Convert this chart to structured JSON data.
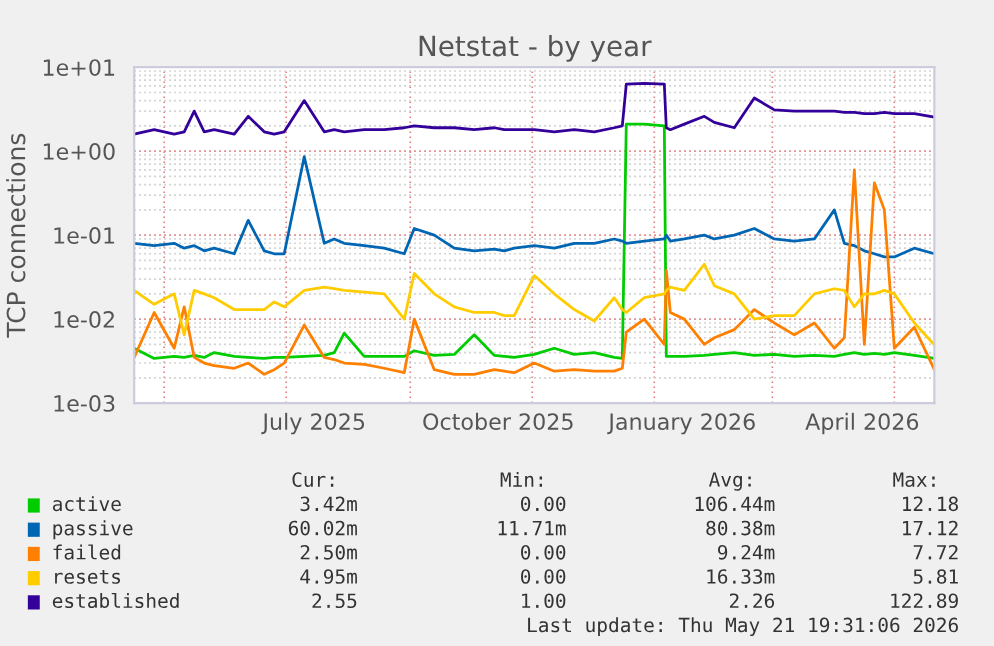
{
  "chart_data": {
    "type": "line",
    "title": "Netstat - by year",
    "ylabel": "TCP connections",
    "log": true,
    "grid": true,
    "legend": "bottom",
    "xlim": [
      "2025-04-16",
      "2026-05-21"
    ],
    "xticks": [
      {
        "value": "2025-05-01",
        "label": null
      },
      {
        "value": "2025-07-01",
        "label": null
      },
      {
        "value": "2025-07-15",
        "label": "July 2025"
      },
      {
        "value": "2025-09-01",
        "label": null
      },
      {
        "value": "2025-10-15",
        "label": "October 2025"
      },
      {
        "value": "2025-11-01",
        "label": null
      },
      {
        "value": "2026-01-01",
        "label": null
      },
      {
        "value": "2026-01-15",
        "label": "January 2026"
      },
      {
        "value": "2026-03-01",
        "label": null
      },
      {
        "value": "2026-04-15",
        "label": "April 2026"
      },
      {
        "value": "2026-05-01",
        "label": null
      }
    ],
    "ylim": [
      0.001,
      10
    ],
    "yticks": [
      {
        "value": 0.001,
        "label": "1e-03"
      },
      {
        "value": 0.01,
        "label": "1e-02"
      },
      {
        "value": 0.1,
        "label": "1e-01"
      },
      {
        "value": 1,
        "label": "1e+00"
      },
      {
        "value": 10,
        "label": "1e+01"
      }
    ],
    "x": [
      "2025-04-16",
      "2025-04-26",
      "2025-05-06",
      "2025-05-11",
      "2025-05-16",
      "2025-05-21",
      "2025-05-26",
      "2025-06-05",
      "2025-06-12",
      "2025-06-20",
      "2025-06-25",
      "2025-06-30",
      "2025-07-10",
      "2025-07-20",
      "2025-07-25",
      "2025-07-30",
      "2025-08-09",
      "2025-08-19",
      "2025-08-29",
      "2025-09-03",
      "2025-09-13",
      "2025-09-23",
      "2025-10-03",
      "2025-10-13",
      "2025-10-18",
      "2025-10-23",
      "2025-11-02",
      "2025-11-12",
      "2025-11-22",
      "2025-12-02",
      "2025-12-12",
      "2025-12-16",
      "2025-12-18",
      "2025-12-27",
      "2026-01-06",
      "2026-01-07",
      "2026-01-09",
      "2026-01-16",
      "2026-01-26",
      "2026-01-31",
      "2026-02-10",
      "2026-02-20",
      "2026-03-02",
      "2026-03-12",
      "2026-03-22",
      "2026-04-01",
      "2026-04-06",
      "2026-04-11",
      "2026-04-16",
      "2026-04-21",
      "2026-04-26",
      "2026-05-01",
      "2026-05-11",
      "2026-05-21"
    ],
    "series": [
      {
        "name": "active",
        "color": "#00cc00",
        "values": [
          0.0045,
          0.0034,
          0.0036,
          0.0035,
          0.0037,
          0.0035,
          0.004,
          0.0036,
          0.0035,
          0.0034,
          0.0035,
          0.0035,
          0.0036,
          0.0037,
          0.004,
          0.0068,
          0.0036,
          0.0036,
          0.0036,
          0.0042,
          0.0037,
          0.0038,
          0.0065,
          0.0037,
          0.0036,
          0.0035,
          0.0038,
          0.0045,
          0.0038,
          0.004,
          0.0035,
          0.0034,
          2.1,
          2.1,
          2.0,
          0.0036,
          0.0036,
          0.0036,
          0.0037,
          0.0038,
          0.004,
          0.0037,
          0.0038,
          0.0036,
          0.0037,
          0.0036,
          0.0038,
          0.004,
          0.0038,
          0.0039,
          0.0038,
          0.004,
          0.0037,
          0.00342
        ]
      },
      {
        "name": "passive",
        "color": "#0066b3",
        "values": [
          0.08,
          0.075,
          0.08,
          0.07,
          0.075,
          0.065,
          0.07,
          0.06,
          0.15,
          0.065,
          0.06,
          0.06,
          0.86,
          0.08,
          0.09,
          0.08,
          0.075,
          0.07,
          0.06,
          0.12,
          0.1,
          0.07,
          0.065,
          0.068,
          0.065,
          0.07,
          0.075,
          0.07,
          0.08,
          0.08,
          0.09,
          0.085,
          0.08,
          0.085,
          0.09,
          0.1,
          0.085,
          0.09,
          0.1,
          0.09,
          0.1,
          0.12,
          0.09,
          0.085,
          0.09,
          0.2,
          0.08,
          0.075,
          0.065,
          0.06,
          0.055,
          0.055,
          0.07,
          0.06
        ]
      },
      {
        "name": "failed",
        "color": "#ff8000",
        "values": [
          0.0035,
          0.012,
          0.0045,
          0.014,
          0.0035,
          0.003,
          0.0028,
          0.0026,
          0.003,
          0.0022,
          0.0025,
          0.003,
          0.0085,
          0.0035,
          0.0033,
          0.003,
          0.0029,
          0.0026,
          0.0023,
          0.01,
          0.0025,
          0.0022,
          0.0022,
          0.0025,
          0.0024,
          0.0023,
          0.003,
          0.0024,
          0.0025,
          0.0024,
          0.0024,
          0.0026,
          0.007,
          0.01,
          0.005,
          0.038,
          0.012,
          0.01,
          0.005,
          0.006,
          0.0075,
          0.013,
          0.009,
          0.0065,
          0.009,
          0.0045,
          0.006,
          0.6,
          0.005,
          0.42,
          0.2,
          0.0045,
          0.008,
          0.0025
        ]
      },
      {
        "name": "resets",
        "color": "#ffcc00",
        "values": [
          0.022,
          0.015,
          0.02,
          0.0065,
          0.022,
          0.02,
          0.018,
          0.013,
          0.013,
          0.013,
          0.016,
          0.014,
          0.022,
          0.024,
          0.023,
          0.022,
          0.021,
          0.02,
          0.01,
          0.035,
          0.02,
          0.014,
          0.012,
          0.012,
          0.011,
          0.011,
          0.033,
          0.02,
          0.013,
          0.0095,
          0.018,
          0.013,
          0.012,
          0.018,
          0.02,
          0.022,
          0.024,
          0.022,
          0.045,
          0.025,
          0.02,
          0.01,
          0.011,
          0.011,
          0.02,
          0.023,
          0.022,
          0.014,
          0.02,
          0.02,
          0.022,
          0.02,
          0.009,
          0.00495
        ]
      },
      {
        "name": "established",
        "color": "#330099",
        "values": [
          1.6,
          1.8,
          1.6,
          1.7,
          3.0,
          1.7,
          1.8,
          1.6,
          2.6,
          1.7,
          1.6,
          1.7,
          4.0,
          1.7,
          1.8,
          1.7,
          1.8,
          1.8,
          1.9,
          2.0,
          1.9,
          1.9,
          1.8,
          1.9,
          1.8,
          1.8,
          1.8,
          1.7,
          1.8,
          1.7,
          1.9,
          2.0,
          6.3,
          6.4,
          6.3,
          1.9,
          1.8,
          2.1,
          2.6,
          2.2,
          1.9,
          4.3,
          3.1,
          3.0,
          3.0,
          3.0,
          2.9,
          2.9,
          2.8,
          2.8,
          2.9,
          2.8,
          2.8,
          2.55
        ]
      }
    ],
    "annotations": [
      "Cur:",
      "Min:",
      "Avg:",
      "Max:",
      "3.42m",
      "0.00",
      "106.44m",
      "12.18",
      "60.02m",
      "11.71m",
      "80.38m",
      "17.12",
      "2.50m",
      "0.00",
      "9.24m",
      "7.72",
      "4.95m",
      "0.00",
      "16.33m",
      "5.81",
      "2.55",
      "1.00",
      "2.26",
      "122.89",
      "Last update: Thu May 21 19:31:06 2026"
    ]
  }
}
